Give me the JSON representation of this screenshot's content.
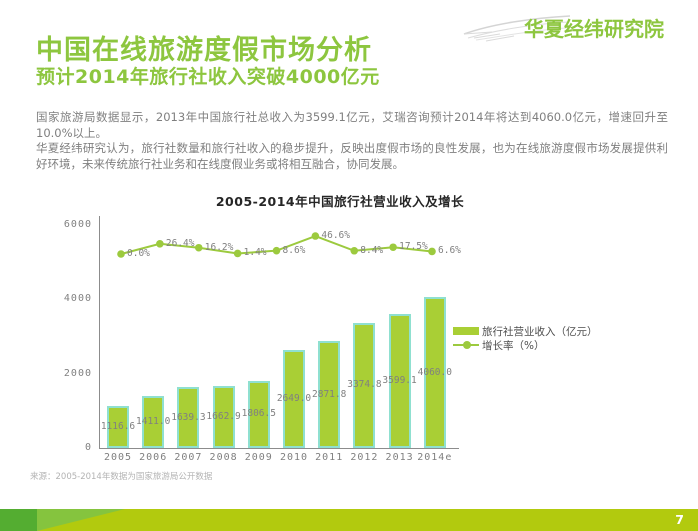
{
  "logo": {
    "text": "华夏经纬研究院"
  },
  "header": {
    "title": "中国在线旅游度假市场分析",
    "subtitle": "预计2014年旅行社收入突破4000亿元"
  },
  "body": {
    "paragraph1": "国家旅游局数据显示，2013年中国旅行社总收入为3599.1亿元，艾瑞咨询预计2014年将达到4060.0亿元，增速回升至10.0%以上。",
    "paragraph2": "华夏经纬研究认为，旅行社数量和旅行社收入的稳步提升，反映出度假市场的良性发展，也为在线旅游度假市场发展提供利好环境，未来传统旅行社业务和在线度假业务或将相互融合，协同发展。"
  },
  "chart_data": {
    "type": "bar",
    "title": "2005-2014年中国旅行社营业收入及增长",
    "categories": [
      "2005",
      "2006",
      "2007",
      "2008",
      "2009",
      "2010",
      "2011",
      "2012",
      "2013",
      "2014e"
    ],
    "series": [
      {
        "name": "旅行社营业收入（亿元）",
        "type": "bar",
        "values": [
          1116.6,
          1411.0,
          1639.3,
          1662.9,
          1806.5,
          2649.0,
          2871.8,
          3374.8,
          3599.1,
          4060.0
        ],
        "value_labels": [
          "1116.6",
          "1411.0",
          "1639.3",
          "1662.9",
          "1806.5",
          "2649.0",
          "2871.8",
          "3374.8",
          "3599.1",
          "4060.0"
        ]
      },
      {
        "name": "增长率（%）",
        "type": "line",
        "years": [
          "2005",
          "2006",
          "2007",
          "2008",
          "2009",
          "2010",
          "2011",
          "2012",
          "2013"
        ],
        "values": [
          0.0,
          26.4,
          16.2,
          1.4,
          8.6,
          46.6,
          8.4,
          17.5,
          6.6
        ],
        "value_labels": [
          "0.0%",
          "26.4%",
          "16.2%",
          "1.4%",
          "8.6%",
          "46.6%",
          "8.4%",
          "17.5%",
          "6.6%"
        ]
      }
    ],
    "y_axis": {
      "ticks": [
        0,
        2000,
        4000,
        6000
      ],
      "max": 6000
    },
    "legend": [
      "旅行社营业收入（亿元）",
      "增长率（%）"
    ],
    "legend_position": "right-center",
    "grid": false,
    "colors": {
      "bar_fill": "#a9cf35",
      "bar_border": "#8fe0d0",
      "line": "#9cca3e",
      "label_text": "#808080"
    }
  },
  "source_note": "来源：2005-2014年数据为国家旅游局公开数据",
  "footer": {
    "page_number": "7",
    "bar_color": "#b2ca0e",
    "accent_dark": "#54ad31",
    "accent_mid": "#85c43e"
  },
  "colors": {
    "brand_green": "#8dc63f",
    "text_gray": "#7f7f7f"
  }
}
